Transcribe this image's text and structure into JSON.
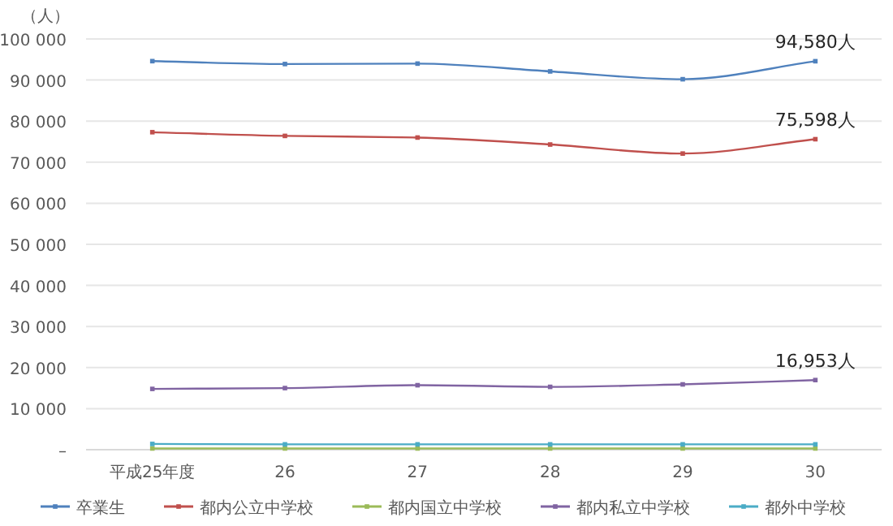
{
  "chart_data": {
    "type": "line",
    "ylabel": "（人）",
    "categories": [
      "平成25年度",
      "26",
      "27",
      "28",
      "29",
      "30"
    ],
    "series": [
      {
        "name": "卒業生",
        "color": "#4f81bd",
        "values": [
          94600,
          93900,
          94000,
          92100,
          90200,
          94580
        ]
      },
      {
        "name": "都内公立中学校",
        "color": "#c0504d",
        "values": [
          77300,
          76400,
          76000,
          74300,
          72100,
          75598
        ]
      },
      {
        "name": "都内国立中学校",
        "color": "#9bbb59",
        "values": [
          300,
          300,
          300,
          300,
          300,
          300
        ]
      },
      {
        "name": "都内私立中学校",
        "color": "#8064a2",
        "values": [
          14800,
          15000,
          15700,
          15300,
          15900,
          16953
        ]
      },
      {
        "name": "都外中学校",
        "color": "#4bacc6",
        "values": [
          1400,
          1300,
          1300,
          1300,
          1300,
          1300
        ]
      }
    ],
    "ylim": [
      0,
      100000
    ],
    "yticks": [
      {
        "value": 0,
        "label": "–"
      },
      {
        "value": 10000,
        "label": "10 000"
      },
      {
        "value": 20000,
        "label": "20 000"
      },
      {
        "value": 30000,
        "label": "30 000"
      },
      {
        "value": 40000,
        "label": "40 000"
      },
      {
        "value": 50000,
        "label": "50 000"
      },
      {
        "value": 60000,
        "label": "60 000"
      },
      {
        "value": 70000,
        "label": "70 000"
      },
      {
        "value": 80000,
        "label": "80 000"
      },
      {
        "value": 90000,
        "label": "90 000"
      },
      {
        "value": 100000,
        "label": "100 000"
      }
    ],
    "annotations": [
      {
        "text": "94,580人",
        "x": "30",
        "y": 94580
      },
      {
        "text": "75,598人",
        "x": "30",
        "y": 75598
      },
      {
        "text": "16,953人",
        "x": "30",
        "y": 16953
      }
    ],
    "grid": "y",
    "legend": "bottom",
    "marker": "square",
    "line_style": "solid"
  }
}
